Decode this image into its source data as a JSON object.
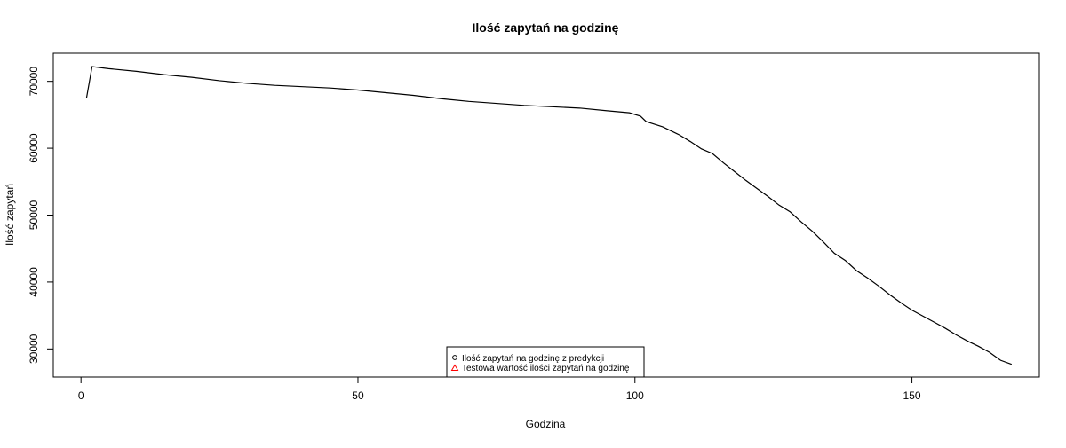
{
  "chart_data": {
    "type": "line",
    "title": "Ilość zapytań na godzinę",
    "xlabel": "Godzina",
    "ylabel": "Ilość zapytań",
    "xlim": [
      -5,
      173
    ],
    "ylim": [
      25800,
      74200
    ],
    "xticks": [
      0,
      50,
      100,
      150
    ],
    "xtick_labels": [
      "0",
      "50",
      "100",
      "150"
    ],
    "yticks": [
      30000,
      40000,
      50000,
      60000,
      70000
    ],
    "ytick_labels": [
      "30000",
      "40000",
      "50000",
      "60000",
      "70000"
    ],
    "grid": false,
    "legend": {
      "placement": "bottom-center",
      "entries": [
        {
          "label": "Ilość zapytań na godzinę z predykcji",
          "marker": "circle",
          "color": "#000000"
        },
        {
          "label": "Testowa wartość ilości zapytań na godzinę",
          "marker": "triangle",
          "color": "#ff0000"
        }
      ]
    },
    "series": [
      {
        "color": "#000000",
        "x": [
          1,
          2,
          5,
          10,
          15,
          20,
          25,
          30,
          35,
          40,
          45,
          50,
          55,
          60,
          65,
          70,
          75,
          80,
          85,
          90,
          95,
          99,
          101,
          102,
          105,
          108,
          110,
          112,
          114,
          116,
          118,
          120,
          122,
          124,
          126,
          128,
          130,
          132,
          134,
          136,
          138,
          140,
          142,
          144,
          146,
          148,
          150,
          152,
          154,
          156,
          158,
          160,
          162,
          164,
          166,
          168
        ],
        "y": [
          67500,
          72200,
          71900,
          71500,
          71000,
          70600,
          70100,
          69700,
          69400,
          69200,
          69000,
          68700,
          68300,
          67900,
          67400,
          67000,
          66700,
          66400,
          66200,
          66000,
          65600,
          65300,
          64800,
          64000,
          63200,
          62000,
          61000,
          59900,
          59200,
          57800,
          56500,
          55200,
          54000,
          52800,
          51500,
          50500,
          49000,
          47600,
          46000,
          44300,
          43200,
          41700,
          40600,
          39400,
          38100,
          36900,
          35800,
          34900,
          34000,
          33100,
          32100,
          31200,
          30400,
          29500,
          28300,
          27700
        ]
      }
    ]
  }
}
